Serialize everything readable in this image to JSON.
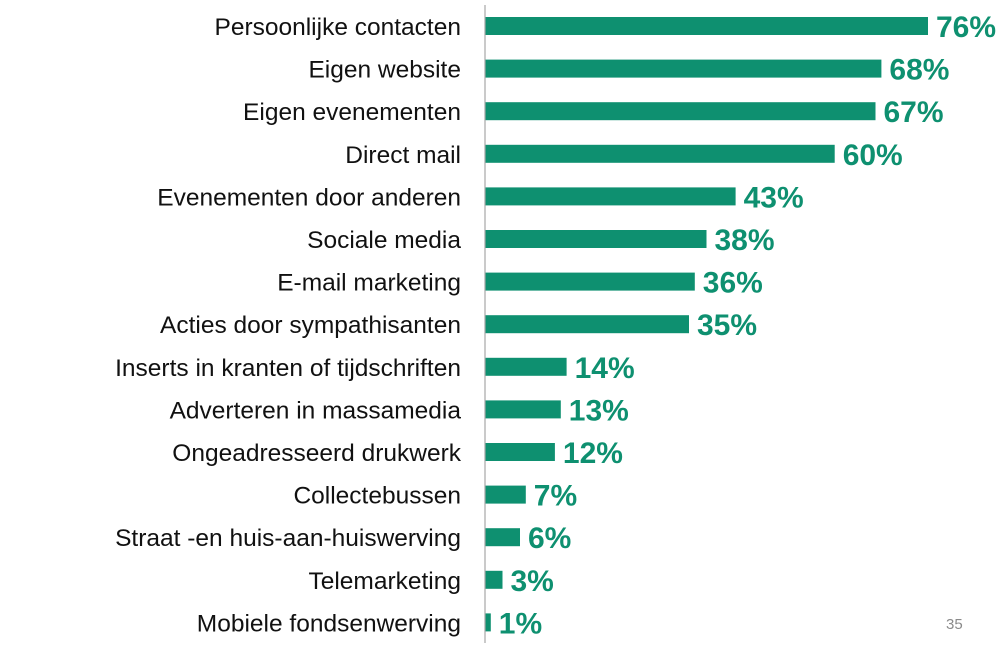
{
  "page": {
    "number": "35"
  },
  "colors": {
    "bar": "#0e9070",
    "label_text": "#111111",
    "axis": "#a6a6a6"
  },
  "chart_data": {
    "type": "bar",
    "orientation": "horizontal",
    "title": "",
    "xlabel": "",
    "ylabel": "",
    "xlim": [
      0,
      80
    ],
    "grid": false,
    "legend": "none",
    "value_format": "percent",
    "categories": [
      "Persoonlijke contacten",
      "Eigen website",
      "Eigen evenementen",
      "Direct mail",
      "Evenementen door anderen",
      "Sociale media",
      "E-mail marketing",
      "Acties door sympathisanten",
      "Inserts in kranten of tijdschriften",
      "Adverteren in massamedia",
      "Ongeadresseerd drukwerk",
      "Collectebussen",
      "Straat -en huis-aan-huiswerving",
      "Telemarketing",
      "Mobiele fondsenwerving"
    ],
    "values": [
      76,
      68,
      67,
      60,
      43,
      38,
      36,
      35,
      14,
      13,
      12,
      7,
      6,
      3,
      1
    ],
    "data_labels": [
      "76%",
      "68%",
      "67%",
      "60%",
      "43%",
      "38%",
      "36%",
      "35%",
      "14%",
      "13%",
      "12%",
      "7%",
      "6%",
      "3%",
      "1%"
    ]
  }
}
